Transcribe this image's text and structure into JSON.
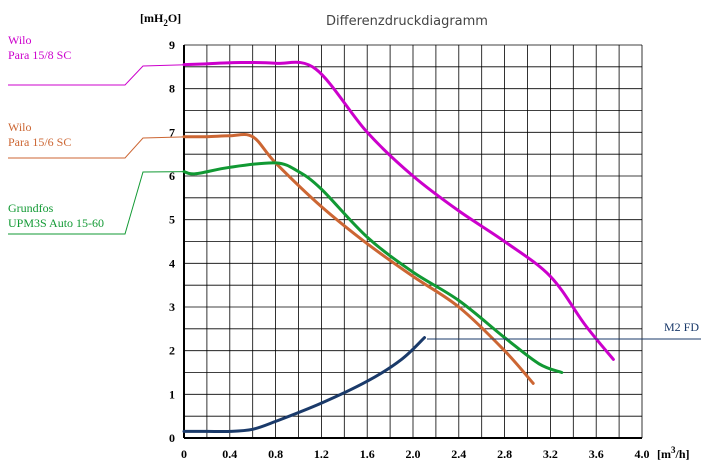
{
  "chart_data": {
    "type": "line",
    "title": "Differenzdruckdiagramm",
    "xunit": "[m",
    "xunit_sup": "3",
    "xunit_end": "/h]",
    "yunit": "[mH",
    "yunit_sub": "2",
    "yunit_end": "O]",
    "xlim": [
      0,
      4.0
    ],
    "ylim": [
      0,
      9
    ],
    "grid": true,
    "x_tick_labels": [
      "0",
      "0.4",
      "0.8",
      "1.2",
      "1.6",
      "2.0",
      "2.4",
      "2.8",
      "3.2",
      "3.6",
      "4.0"
    ],
    "y_tick_labels": [
      "0",
      "1",
      "2",
      "3",
      "4",
      "5",
      "6",
      "7",
      "8",
      "9"
    ],
    "series": [
      {
        "line1": "Wilo",
        "line2": "Para 15/8 SC",
        "color": "#cc00cc",
        "x": [
          0,
          0.2,
          0.5,
          0.8,
          1.15,
          1.6,
          2.0,
          2.4,
          2.8,
          3.2,
          3.5,
          3.75
        ],
        "y": [
          8.55,
          8.57,
          8.6,
          8.58,
          8.45,
          7.0,
          6.0,
          5.2,
          4.5,
          3.7,
          2.6,
          1.8
        ]
      },
      {
        "line1": "Wilo",
        "line2": "Para 15/6 SC",
        "color": "#cc6633",
        "x": [
          0,
          0.2,
          0.4,
          0.6,
          0.8,
          1.2,
          1.6,
          2.0,
          2.4,
          2.8,
          3.05
        ],
        "y": [
          6.9,
          6.9,
          6.92,
          6.9,
          6.3,
          5.3,
          4.45,
          3.7,
          3.0,
          2.0,
          1.25
        ]
      },
      {
        "line1": "Grundfos",
        "line2": "UPM3S Auto 15-60",
        "color": "#119933",
        "x": [
          0,
          0.1,
          0.4,
          0.8,
          1.0,
          1.2,
          1.6,
          2.0,
          2.4,
          2.8,
          3.1,
          3.3
        ],
        "y": [
          6.1,
          6.05,
          6.2,
          6.3,
          6.1,
          5.7,
          4.6,
          3.8,
          3.15,
          2.3,
          1.7,
          1.5
        ]
      },
      {
        "line1": "M2 FD",
        "line2": "",
        "color": "#1a3a6a",
        "x": [
          0,
          0.2,
          0.4,
          0.6,
          0.8,
          1.2,
          1.6,
          1.9,
          2.1
        ],
        "y": [
          0.15,
          0.15,
          0.15,
          0.2,
          0.38,
          0.8,
          1.3,
          1.8,
          2.3
        ]
      }
    ]
  }
}
